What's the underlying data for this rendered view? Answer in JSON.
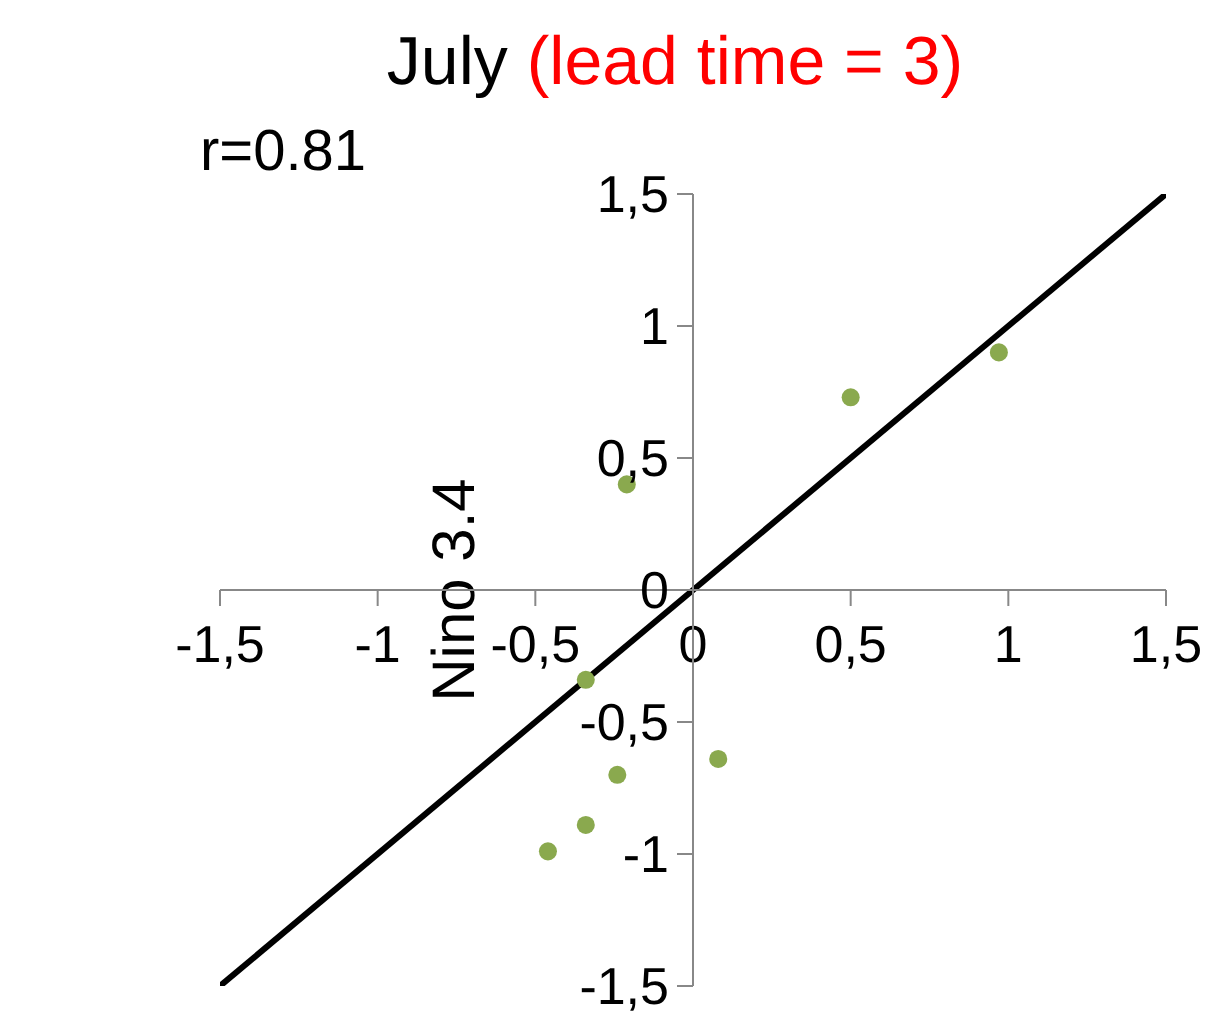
{
  "chart_data": {
    "type": "scatter",
    "title": "July",
    "subtitle": "(lead time = 3)",
    "ylabel": "Nino 3.4",
    "annotations": [
      "r=0.81"
    ],
    "marker": "circle",
    "legend": false,
    "grid": false,
    "x": [
      -0.21,
      0.5,
      0.97,
      0.08,
      -0.34,
      -0.24,
      -0.34,
      -0.46
    ],
    "series": [
      {
        "color": "#8aa94e",
        "values": [
          0.4,
          0.73,
          0.9,
          -0.64,
          -0.34,
          -0.7,
          -0.89,
          -0.99
        ]
      },
      {
        "type": "line",
        "marker": "none",
        "color": "#000000",
        "x": [
          -1.5,
          1.5
        ],
        "values": [
          -1.5,
          1.5
        ]
      }
    ],
    "xlim": [
      -1.5,
      1.5
    ],
    "ylim": [
      -1.5,
      1.5
    ],
    "xticks": [
      {
        "value": -1.5,
        "label": "-1,5"
      },
      -1,
      {
        "value": -0.5,
        "label": "-0,5"
      },
      0,
      {
        "value": 0.5,
        "label": "0,5"
      },
      1,
      {
        "value": 1.5,
        "label": "1,5"
      }
    ],
    "yticks": [
      {
        "value": -1.5,
        "label": "-1,5"
      },
      -1,
      {
        "value": -0.5,
        "label": "-0,5"
      },
      0,
      {
        "value": 0.5,
        "label": "0,5"
      },
      1,
      {
        "value": 1.5,
        "label": "1,5"
      }
    ]
  }
}
